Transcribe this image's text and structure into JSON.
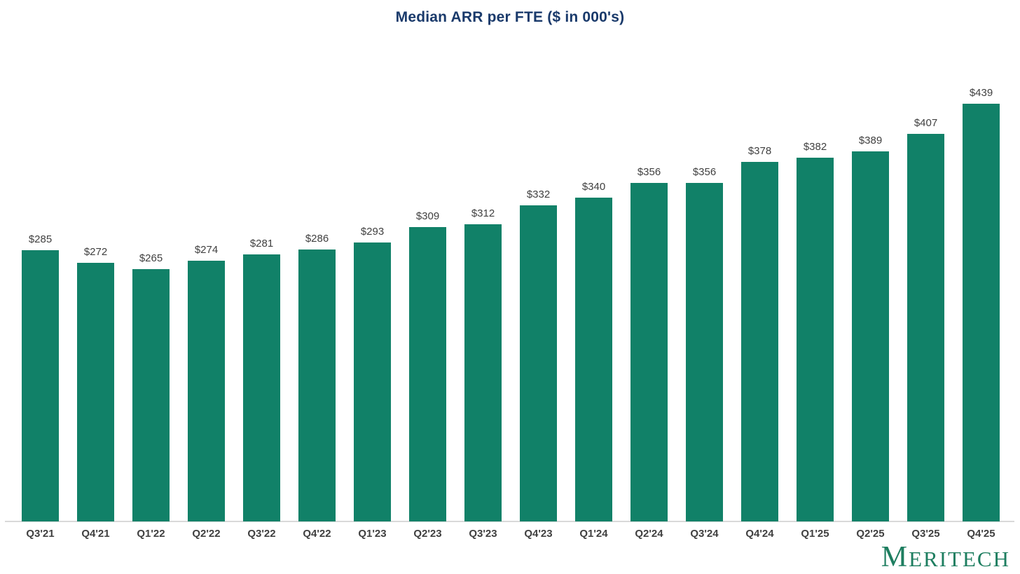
{
  "chart_data": {
    "type": "bar",
    "title": "Median ARR per FTE ($ in 000's)",
    "categories": [
      "Q3'21",
      "Q4'21",
      "Q1'22",
      "Q2'22",
      "Q3'22",
      "Q4'22",
      "Q1'23",
      "Q2'23",
      "Q3'23",
      "Q4'23",
      "Q1'24",
      "Q2'24",
      "Q3'24",
      "Q4'24",
      "Q1'25",
      "Q2'25",
      "Q3'25",
      "Q4'25"
    ],
    "values": [
      285,
      272,
      265,
      274,
      281,
      286,
      293,
      309,
      312,
      332,
      340,
      356,
      356,
      378,
      382,
      389,
      407,
      439
    ],
    "value_labels": [
      "$285",
      "$272",
      "$265",
      "$274",
      "$281",
      "$286",
      "$293",
      "$309",
      "$312",
      "$332",
      "$340",
      "$356",
      "$356",
      "$378",
      "$382",
      "$389",
      "$407",
      "$439"
    ],
    "xlabel": "",
    "ylabel": "",
    "ylim": [
      0,
      460
    ],
    "y_axis_visible": false,
    "gridlines": false,
    "legend": null,
    "bar_color": "#118168",
    "title_color": "#1A3A6B",
    "value_label_color": "#404040",
    "tick_label_color": "#404040",
    "axis_line_color": "#D9D9D9"
  },
  "logo": {
    "text_initial": "M",
    "text_rest": "ERITECH",
    "full_text": "MERITECH",
    "color": "#1E7E60"
  }
}
